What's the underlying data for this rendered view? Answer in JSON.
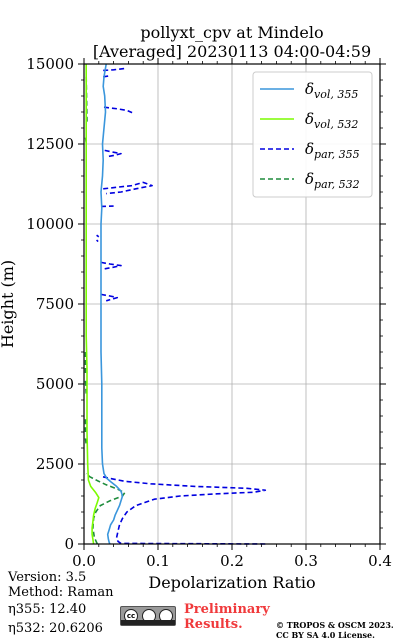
{
  "figure": {
    "title_line1": "pollyxt_cpv at Mindelo",
    "title_line2": "[Averaged] 20230113 04:00-04:59"
  },
  "chart_data": {
    "type": "line",
    "title": "pollyxt_cpv at Mindelo [Averaged] 20230113 04:00-04:59",
    "xlabel": "Depolarization Ratio",
    "ylabel": "Height (m)",
    "xlim": [
      0,
      0.4
    ],
    "ylim": [
      0,
      15000
    ],
    "x_ticks": [
      0.0,
      0.1,
      0.2,
      0.3,
      0.4
    ],
    "x_tick_labels": [
      "0.0",
      "0.1",
      "0.2",
      "0.3",
      "0.4"
    ],
    "y_ticks": [
      0,
      2500,
      5000,
      7500,
      10000,
      12500,
      15000
    ],
    "y_tick_labels": [
      "0",
      "2500",
      "5000",
      "7500",
      "10000",
      "12500",
      "15000"
    ],
    "grid": true,
    "legend_position": "top-right",
    "series": [
      {
        "name_main": "δ",
        "name_sub": "vol, 355",
        "color": "#3a96dc",
        "dash": "solid",
        "points": [
          [
            0.035,
            0
          ],
          [
            0.034,
            50
          ],
          [
            0.033,
            150
          ],
          [
            0.032,
            300
          ],
          [
            0.034,
            450
          ],
          [
            0.036,
            600
          ],
          [
            0.04,
            750
          ],
          [
            0.042,
            900
          ],
          [
            0.045,
            1050
          ],
          [
            0.048,
            1200
          ],
          [
            0.05,
            1350
          ],
          [
            0.052,
            1500
          ],
          [
            0.05,
            1650
          ],
          [
            0.044,
            1800
          ],
          [
            0.036,
            1950
          ],
          [
            0.031,
            2050
          ],
          [
            0.027,
            2200
          ],
          [
            0.025,
            2500
          ],
          [
            0.024,
            3000
          ],
          [
            0.024,
            4000
          ],
          [
            0.024,
            5000
          ],
          [
            0.023,
            6000
          ],
          [
            0.023,
            7000
          ],
          [
            0.023,
            7800
          ],
          [
            0.023,
            8500
          ],
          [
            0.023,
            9000
          ],
          [
            0.023,
            9500
          ],
          [
            0.023,
            10000
          ],
          [
            0.024,
            10500
          ],
          [
            0.023,
            11000
          ],
          [
            0.025,
            11500
          ],
          [
            0.026,
            12000
          ],
          [
            0.025,
            12500
          ],
          [
            0.027,
            13000
          ],
          [
            0.029,
            13500
          ],
          [
            0.028,
            14000
          ],
          [
            0.026,
            14300
          ],
          [
            0.027,
            14600
          ],
          [
            0.03,
            15000
          ]
        ]
      },
      {
        "name_main": "δ",
        "name_sub": "vol, 532",
        "color": "#7cfc00",
        "dash": "solid",
        "points": [
          [
            0.013,
            0
          ],
          [
            0.012,
            150
          ],
          [
            0.011,
            300
          ],
          [
            0.011,
            500
          ],
          [
            0.012,
            700
          ],
          [
            0.013,
            900
          ],
          [
            0.015,
            1100
          ],
          [
            0.018,
            1300
          ],
          [
            0.02,
            1450
          ],
          [
            0.016,
            1600
          ],
          [
            0.009,
            1800
          ],
          [
            0.006,
            2000
          ],
          [
            0.005,
            2500
          ],
          [
            0.004,
            3500
          ],
          [
            0.004,
            4500
          ],
          [
            0.004,
            5500
          ],
          [
            0.003,
            6500
          ],
          [
            0.003,
            7500
          ],
          [
            0.003,
            8500
          ],
          [
            0.003,
            9500
          ],
          [
            0.003,
            10500
          ],
          [
            0.003,
            11500
          ],
          [
            0.003,
            12500
          ],
          [
            0.003,
            13500
          ],
          [
            0.003,
            14500
          ],
          [
            0.003,
            15000
          ]
        ]
      },
      {
        "name_main": "δ",
        "name_sub": "par, 355",
        "color": "#0000e0",
        "dash": "dashed",
        "points": [
          [
            0.245,
            0
          ],
          [
            0.05,
            20
          ],
          [
            0.046,
            80
          ],
          [
            0.044,
            200
          ],
          [
            0.046,
            400
          ],
          [
            0.048,
            600
          ],
          [
            0.052,
            800
          ],
          [
            0.058,
            1000
          ],
          [
            0.07,
            1200
          ],
          [
            0.095,
            1400
          ],
          [
            0.13,
            1500
          ],
          [
            0.18,
            1570
          ],
          [
            0.23,
            1620
          ],
          [
            0.245,
            1680
          ],
          [
            0.22,
            1740
          ],
          [
            0.15,
            1800
          ],
          [
            0.09,
            1880
          ],
          [
            0.055,
            1960
          ],
          [
            0.035,
            2050
          ],
          [
            0.022,
            2120
          ]
        ]
      },
      {
        "name_main": "δ",
        "name_sub": "par, 532",
        "color": "#1e8c3c",
        "dash": "dashed",
        "points": [
          [
            0.018,
            0
          ],
          [
            0.014,
            200
          ],
          [
            0.012,
            500
          ],
          [
            0.013,
            800
          ],
          [
            0.016,
            1000
          ],
          [
            0.022,
            1200
          ],
          [
            0.035,
            1350
          ],
          [
            0.052,
            1500
          ],
          [
            0.055,
            1600
          ],
          [
            0.045,
            1720
          ],
          [
            0.03,
            1850
          ],
          [
            0.018,
            1980
          ],
          [
            0.008,
            2100
          ],
          [
            0.003,
            2200
          ]
        ]
      }
    ],
    "par355_upper_patches": [
      [
        [
          0.026,
          14800
        ],
        [
          0.04,
          14820
        ],
        [
          0.055,
          14860
        ]
      ],
      [
        [
          0.026,
          14600
        ],
        [
          0.035,
          14630
        ]
      ],
      [
        [
          0.027,
          13650
        ],
        [
          0.045,
          13600
        ],
        [
          0.058,
          13550
        ],
        [
          0.065,
          13480
        ]
      ],
      [
        [
          0.028,
          12300
        ],
        [
          0.038,
          12250
        ],
        [
          0.05,
          12200
        ],
        [
          0.042,
          12150
        ],
        [
          0.03,
          12100
        ]
      ],
      [
        [
          0.026,
          11100
        ],
        [
          0.045,
          11150
        ],
        [
          0.065,
          11200
        ],
        [
          0.08,
          11300
        ],
        [
          0.092,
          11200
        ],
        [
          0.07,
          11100
        ],
        [
          0.05,
          11000
        ],
        [
          0.03,
          10950
        ]
      ],
      [
        [
          0.023,
          10550
        ],
        [
          0.04,
          10560
        ]
      ],
      [
        [
          0.017,
          9650
        ],
        [
          0.02,
          9600
        ]
      ],
      [
        [
          0.017,
          9500
        ],
        [
          0.019,
          9450
        ]
      ],
      [
        [
          0.023,
          8800
        ],
        [
          0.035,
          8750
        ],
        [
          0.05,
          8700
        ],
        [
          0.04,
          8650
        ],
        [
          0.028,
          8600
        ]
      ],
      [
        [
          0.023,
          7800
        ],
        [
          0.035,
          7750
        ],
        [
          0.045,
          7700
        ],
        [
          0.03,
          7600
        ]
      ]
    ],
    "par532_upper_patches": [
      [
        [
          0.003,
          14600
        ],
        [
          0.004,
          13200
        ]
      ],
      [
        [
          0.002,
          12700
        ],
        [
          0.003,
          12550
        ]
      ],
      [
        [
          0.002,
          6000
        ],
        [
          0.002,
          5300
        ]
      ],
      [
        [
          0.002,
          5100
        ],
        [
          0.003,
          4700
        ]
      ],
      [
        [
          0.002,
          3900
        ],
        [
          0.002,
          3500
        ]
      ],
      [
        [
          0.002,
          3300
        ],
        [
          0.003,
          3100
        ]
      ]
    ]
  },
  "info": {
    "version": "Version: 3.5",
    "method": "Method: Raman",
    "eta355": "η355:  12.40",
    "eta532": "η532: 20.6206"
  },
  "license": {
    "badge_text": "cc",
    "preliminary_line1": "Preliminary",
    "preliminary_line2": "Results.",
    "preliminary_color": "#f0393b",
    "copyright_line1": "© TROPOS & OSCM 2023.",
    "copyright_line2": "CC BY SA 4.0 License."
  }
}
